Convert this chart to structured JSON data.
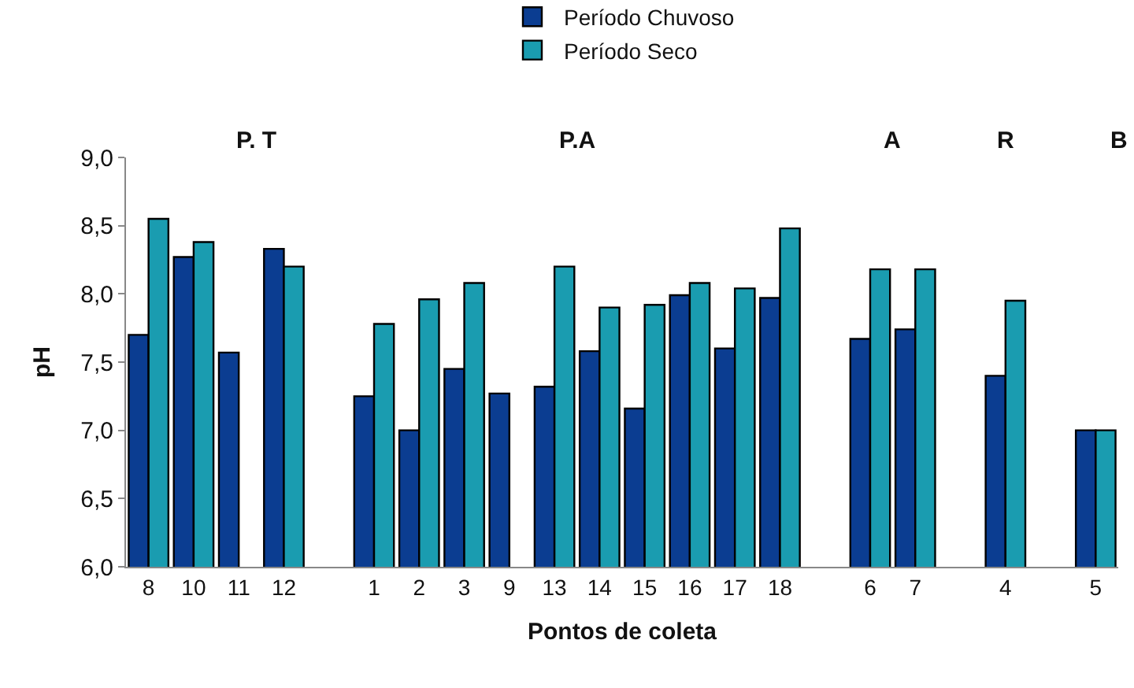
{
  "chart_data": {
    "type": "bar",
    "xlabel": "Pontos de coleta",
    "ylabel": "pH",
    "categories": [
      "8",
      "10",
      "11",
      "12",
      null,
      "1",
      "2",
      "3",
      "9",
      "13",
      "14",
      "15",
      "16",
      "17",
      "18",
      null,
      "6",
      "7",
      null,
      "4",
      null,
      "5"
    ],
    "series": [
      {
        "name": "Período Chuvoso",
        "color": "#0b3d91",
        "values": [
          7.7,
          8.27,
          7.57,
          8.33,
          null,
          7.25,
          7.0,
          7.45,
          7.27,
          7.32,
          7.58,
          7.16,
          7.99,
          7.6,
          7.97,
          null,
          7.67,
          7.74,
          null,
          7.4,
          null,
          7.0
        ]
      },
      {
        "name": "Período Seco",
        "color": "#1a9cb0",
        "values": [
          8.55,
          8.38,
          null,
          8.2,
          null,
          7.78,
          7.96,
          8.08,
          null,
          8.2,
          7.9,
          7.92,
          8.08,
          8.04,
          8.48,
          null,
          8.18,
          8.18,
          null,
          7.95,
          null,
          7.0
        ]
      }
    ],
    "ylim": [
      6.0,
      9.0
    ],
    "yticks": [
      {
        "value": 6.0,
        "label": "6,0"
      },
      {
        "value": 6.5,
        "label": "6,5"
      },
      {
        "value": 7.0,
        "label": "7,0"
      },
      {
        "value": 7.5,
        "label": "7,5"
      },
      {
        "value": 8.0,
        "label": "8,0"
      },
      {
        "value": 8.5,
        "label": "8,5"
      },
      {
        "value": 9.0,
        "label": "9,0"
      }
    ],
    "annotations": [
      "P. T",
      "P.A",
      "A",
      "R",
      "B"
    ],
    "legend": "top"
  }
}
